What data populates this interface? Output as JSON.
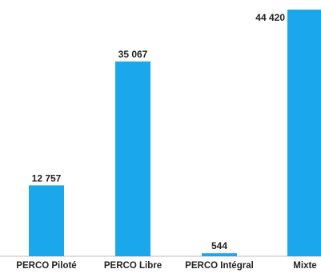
{
  "chart_data": {
    "type": "bar",
    "categories": [
      "PERCO Piloté",
      "PERCO Libre",
      "PERCO Intégral",
      "Mixte"
    ],
    "values": [
      12757,
      35067,
      544,
      44420
    ],
    "value_labels": [
      "12 757",
      "35 067",
      "544",
      "44 420"
    ],
    "title": "",
    "xlabel": "",
    "ylabel": "",
    "ylim": [
      0,
      44420
    ],
    "grid": false,
    "legend": "none",
    "colors": {
      "bar": "#1aa7ec",
      "axis": "#bfbfbf",
      "text": "#222222"
    }
  }
}
